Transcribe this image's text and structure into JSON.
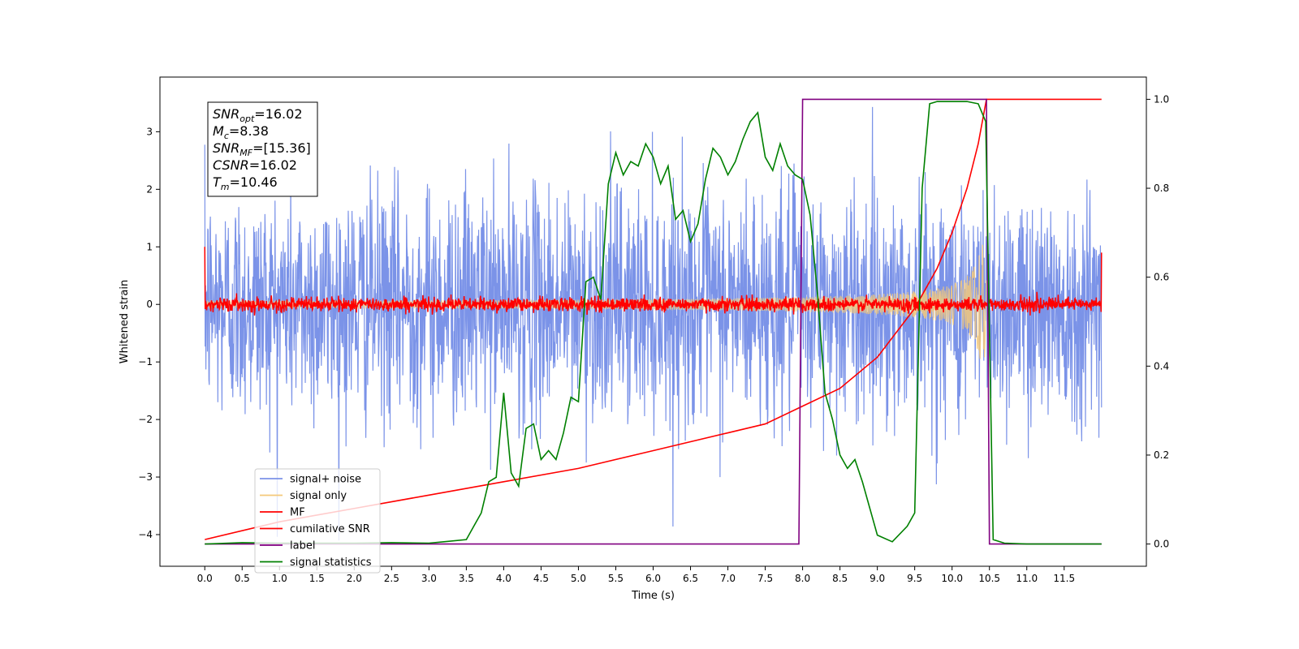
{
  "chart_data": {
    "type": "line",
    "xlabel": "Time (s)",
    "ylabel": "Whitened strain",
    "xlim": [
      -0.6,
      12.6
    ],
    "ylim": [
      -4.55,
      3.95
    ],
    "y2lim": [
      -0.05,
      1.05
    ],
    "x_ticks": [
      "0.0",
      "0.5",
      "1.0",
      "1.5",
      "2.0",
      "2.5",
      "3.0",
      "3.5",
      "4.0",
      "4.5",
      "5.0",
      "5.5",
      "6.0",
      "6.5",
      "7.0",
      "7.5",
      "8.0",
      "8.5",
      "9.0",
      "9.5",
      "10.0",
      "10.5",
      "11.0",
      "11.5"
    ],
    "y_ticks": [
      "−4",
      "−3",
      "−2",
      "−1",
      "0",
      "1",
      "2",
      "3"
    ],
    "y2_ticks": [
      "0.0",
      "0.2",
      "0.4",
      "0.6",
      "0.8",
      "1.0"
    ],
    "legend_position": "lower-left",
    "annotation": {
      "lines": [
        {
          "sym": "SNR",
          "sub": "opt",
          "value": "=16.02"
        },
        {
          "sym": "M",
          "sub": "c",
          "value": "=8.38"
        },
        {
          "sym": "SNR",
          "sub": "MF",
          "value": "=[15.36]"
        },
        {
          "sym": "CSNR",
          "sub": "",
          "value": "=16.02"
        },
        {
          "sym": "T",
          "sub": "m",
          "value": "=10.46"
        }
      ]
    },
    "series": [
      {
        "name": "signal+ noise",
        "color": "#7b93e8",
        "axis": "left",
        "kind": "noise",
        "amplitude": 1.0,
        "spike": 3.6,
        "x_range": [
          0,
          12
        ]
      },
      {
        "name": "signal only",
        "color": "#f5c97a",
        "axis": "left",
        "kind": "chirp",
        "merger_time": 10.46,
        "peak_amplitude": 1.05,
        "base_amplitude": 0.05
      },
      {
        "name": "MF",
        "color": "#ff0000",
        "axis": "left",
        "kind": "noise",
        "amplitude": 0.06,
        "x_range": [
          0,
          12
        ],
        "edge_values": [
          1.0,
          0.9
        ]
      },
      {
        "name": "cumilative SNR",
        "color": "#ff0000",
        "axis": "right",
        "x": [
          0.0,
          1.0,
          2.0,
          3.0,
          4.0,
          5.0,
          6.0,
          7.0,
          7.5,
          8.0,
          8.5,
          9.0,
          9.5,
          9.8,
          10.0,
          10.2,
          10.35,
          10.46,
          10.5,
          12.0
        ],
        "y": [
          0.01,
          0.05,
          0.08,
          0.11,
          0.14,
          0.17,
          0.21,
          0.25,
          0.27,
          0.31,
          0.35,
          0.42,
          0.53,
          0.62,
          0.7,
          0.8,
          0.9,
          1.0,
          1.0,
          1.0
        ]
      },
      {
        "name": "label",
        "color": "#800080",
        "axis": "right",
        "x": [
          0.0,
          7.95,
          8.0,
          10.46,
          10.5,
          12.0
        ],
        "y": [
          0.0,
          0.0,
          1.0,
          1.0,
          0.0,
          0.0
        ]
      },
      {
        "name": "signal statistics",
        "color": "#008000",
        "axis": "right",
        "x": [
          0.0,
          0.5,
          1.0,
          1.5,
          2.0,
          2.5,
          3.0,
          3.2,
          3.5,
          3.6,
          3.7,
          3.8,
          3.9,
          4.0,
          4.1,
          4.2,
          4.3,
          4.4,
          4.5,
          4.6,
          4.7,
          4.8,
          4.9,
          5.0,
          5.1,
          5.2,
          5.3,
          5.4,
          5.5,
          5.6,
          5.7,
          5.8,
          5.9,
          6.0,
          6.1,
          6.2,
          6.3,
          6.4,
          6.5,
          6.6,
          6.7,
          6.8,
          6.9,
          7.0,
          7.1,
          7.2,
          7.3,
          7.4,
          7.5,
          7.6,
          7.7,
          7.8,
          7.9,
          8.0,
          8.1,
          8.2,
          8.3,
          8.4,
          8.5,
          8.6,
          8.7,
          8.8,
          8.9,
          9.0,
          9.2,
          9.4,
          9.5,
          9.6,
          9.7,
          9.8,
          10.0,
          10.2,
          10.35,
          10.45,
          10.55,
          10.7,
          11.0,
          11.5,
          12.0
        ],
        "y": [
          0.0,
          0.003,
          0.002,
          0.002,
          0.002,
          0.003,
          0.002,
          0.005,
          0.01,
          0.04,
          0.07,
          0.14,
          0.15,
          0.34,
          0.16,
          0.13,
          0.26,
          0.27,
          0.19,
          0.21,
          0.19,
          0.25,
          0.33,
          0.32,
          0.59,
          0.6,
          0.55,
          0.81,
          0.88,
          0.83,
          0.86,
          0.85,
          0.9,
          0.87,
          0.81,
          0.85,
          0.73,
          0.75,
          0.68,
          0.72,
          0.82,
          0.89,
          0.87,
          0.83,
          0.86,
          0.91,
          0.95,
          0.97,
          0.87,
          0.84,
          0.9,
          0.85,
          0.83,
          0.82,
          0.74,
          0.56,
          0.34,
          0.28,
          0.2,
          0.17,
          0.19,
          0.14,
          0.08,
          0.02,
          0.005,
          0.04,
          0.07,
          0.8,
          0.99,
          0.995,
          0.995,
          0.995,
          0.99,
          0.95,
          0.01,
          0.002,
          0.0,
          0.0,
          0.0
        ]
      }
    ]
  }
}
